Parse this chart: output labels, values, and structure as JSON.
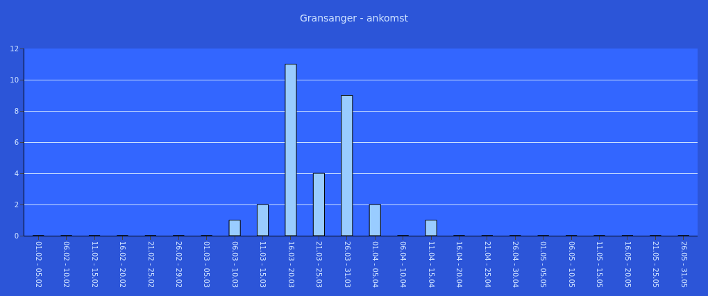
{
  "chart_data": {
    "type": "bar",
    "title": "Gransanger - ankomst",
    "categories": [
      "01.02 - 05.02",
      "06.02 - 10.02",
      "11.02 - 15.02",
      "16.02 - 20.02",
      "21.02 - 25.02",
      "26.02 - 29.02",
      "01.03 - 05.03",
      "06.03 - 10.03",
      "11.03 - 15.03",
      "16.03 - 20.03",
      "21.03 - 25.03",
      "26.03 - 31.03",
      "01.04 - 05.04",
      "06.04 - 10.04",
      "11.04 - 15.04",
      "16.04 - 20.04",
      "21.04 - 25.04",
      "26.04 - 30.04",
      "01.05 - 05.05",
      "06.05 - 10.05",
      "11.05 - 15.05",
      "16.05 - 20.05",
      "21.05 - 25.05",
      "26.05 - 31.05"
    ],
    "values": [
      0,
      0,
      0,
      0,
      0,
      0,
      0,
      1,
      2,
      11,
      4,
      9,
      2,
      0,
      1,
      0,
      0,
      0,
      0,
      0,
      0,
      0,
      0,
      0
    ],
    "color": "#99ccff",
    "ylim": [
      0,
      12
    ],
    "yticks": [
      0,
      2,
      4,
      6,
      8,
      10,
      12
    ],
    "grid": "y"
  }
}
